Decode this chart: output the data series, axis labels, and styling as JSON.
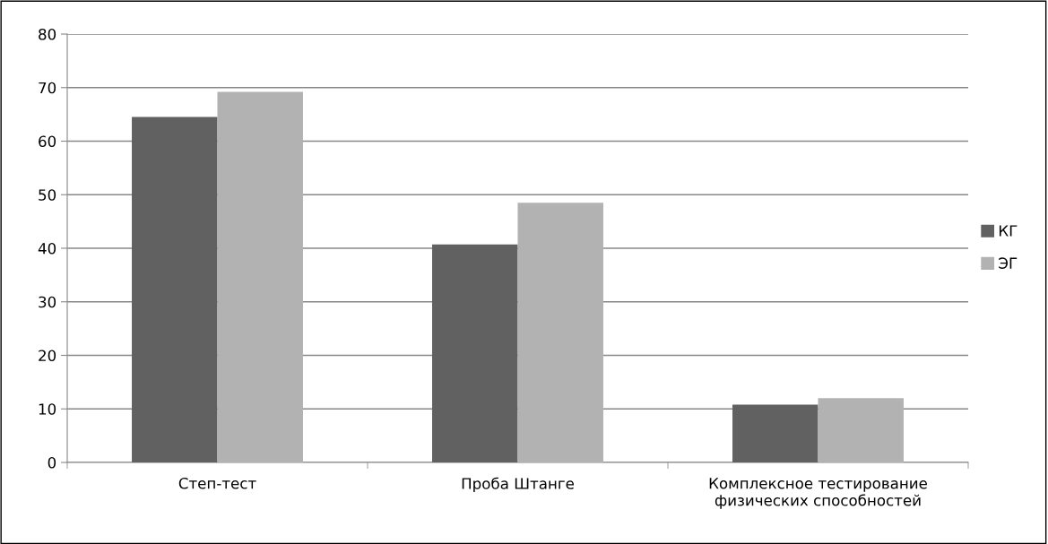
{
  "chart_data": {
    "type": "bar",
    "categories": [
      "Степ-тест",
      "Проба Штанге",
      "Комплексное тестирование\nфизических способностей"
    ],
    "series": [
      {
        "name": "КГ",
        "color": "#616161",
        "values": [
          64.5,
          40.7,
          10.8
        ]
      },
      {
        "name": "ЭГ",
        "color": "#b2b2b2",
        "values": [
          69.2,
          48.5,
          12.0
        ]
      }
    ],
    "ylim": [
      0,
      80
    ],
    "yticks": [
      0,
      10,
      20,
      30,
      40,
      50,
      60,
      70,
      80
    ],
    "grid": "y",
    "legend": "right"
  }
}
